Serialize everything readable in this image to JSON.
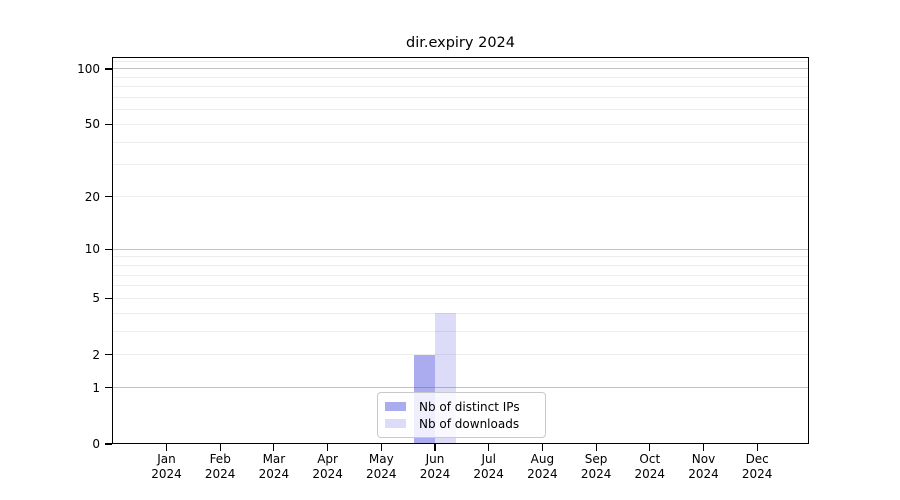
{
  "chart_data": {
    "type": "bar",
    "title": "dir.expiry 2024",
    "categories": [
      "Jan",
      "Feb",
      "Mar",
      "Apr",
      "May",
      "Jun",
      "Jul",
      "Aug",
      "Sep",
      "Oct",
      "Nov",
      "Dec"
    ],
    "year_label": "2024",
    "series": [
      {
        "name": "Nb of distinct IPs",
        "color": "rgba(68,68,221,0.45)",
        "values": [
          0,
          0,
          0,
          0,
          0,
          2,
          0,
          0,
          0,
          0,
          0,
          0
        ]
      },
      {
        "name": "Nb of downloads",
        "color": "rgba(68,68,221,0.19)",
        "values": [
          0,
          0,
          0,
          0,
          0,
          4,
          0,
          0,
          0,
          0,
          0,
          0
        ]
      }
    ],
    "xlabel": "",
    "ylabel": "",
    "yscale": "log1p",
    "ylim": [
      0,
      116
    ],
    "yticks": [
      0,
      1,
      2,
      5,
      10,
      20,
      50,
      100
    ],
    "grid_major": [
      1,
      10,
      100
    ],
    "grid_minor": [
      2,
      3,
      4,
      5,
      6,
      7,
      8,
      9,
      20,
      30,
      40,
      50,
      60,
      70,
      80,
      90,
      110
    ],
    "legend_position": "lower center",
    "colors": {
      "grid_minor": "#ededed",
      "grid_major": "#c3c3c3",
      "axis": "#000000",
      "background": "#ffffff"
    }
  }
}
